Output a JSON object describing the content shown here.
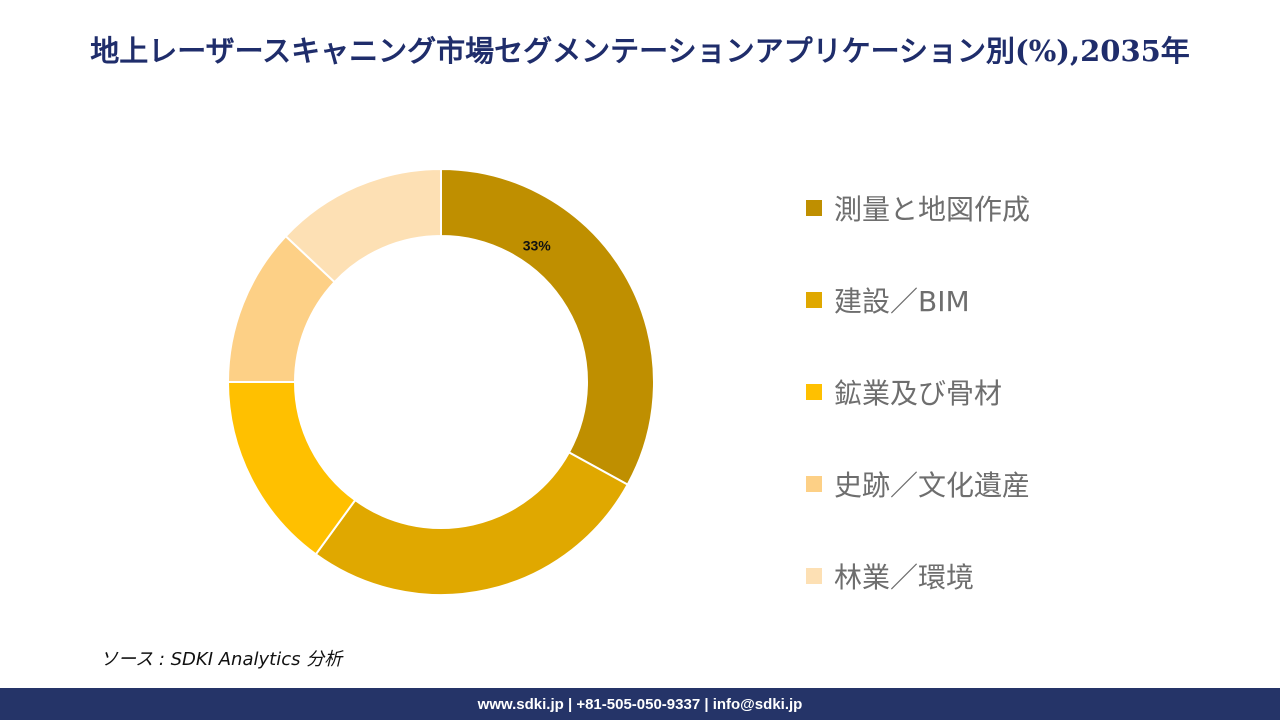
{
  "title": "地上レーザースキャニング市場セグメンテーションアプリケーション別(%),2035年",
  "chart_data": {
    "type": "pie",
    "variant": "donut",
    "title": "地上レーザースキャニング市場セグメンテーションアプリケーション別(%),2035年",
    "categories": [
      "測量と地図作成",
      "建設／BIM",
      "鉱業及び骨材",
      "史跡／文化遺産",
      "林業／環境"
    ],
    "values": [
      33,
      27,
      15,
      12,
      13
    ],
    "colors": [
      "#bf8f00",
      "#e0a800",
      "#ffc000",
      "#fdd086",
      "#fde0b4"
    ],
    "data_labels": [
      "33%",
      "",
      "",
      "",
      ""
    ],
    "legend_position": "right"
  },
  "source": "ソース : SDKI Analytics  分析",
  "footer": "www.sdki.jp | +81-505-050-9337 | info@sdki.jp"
}
